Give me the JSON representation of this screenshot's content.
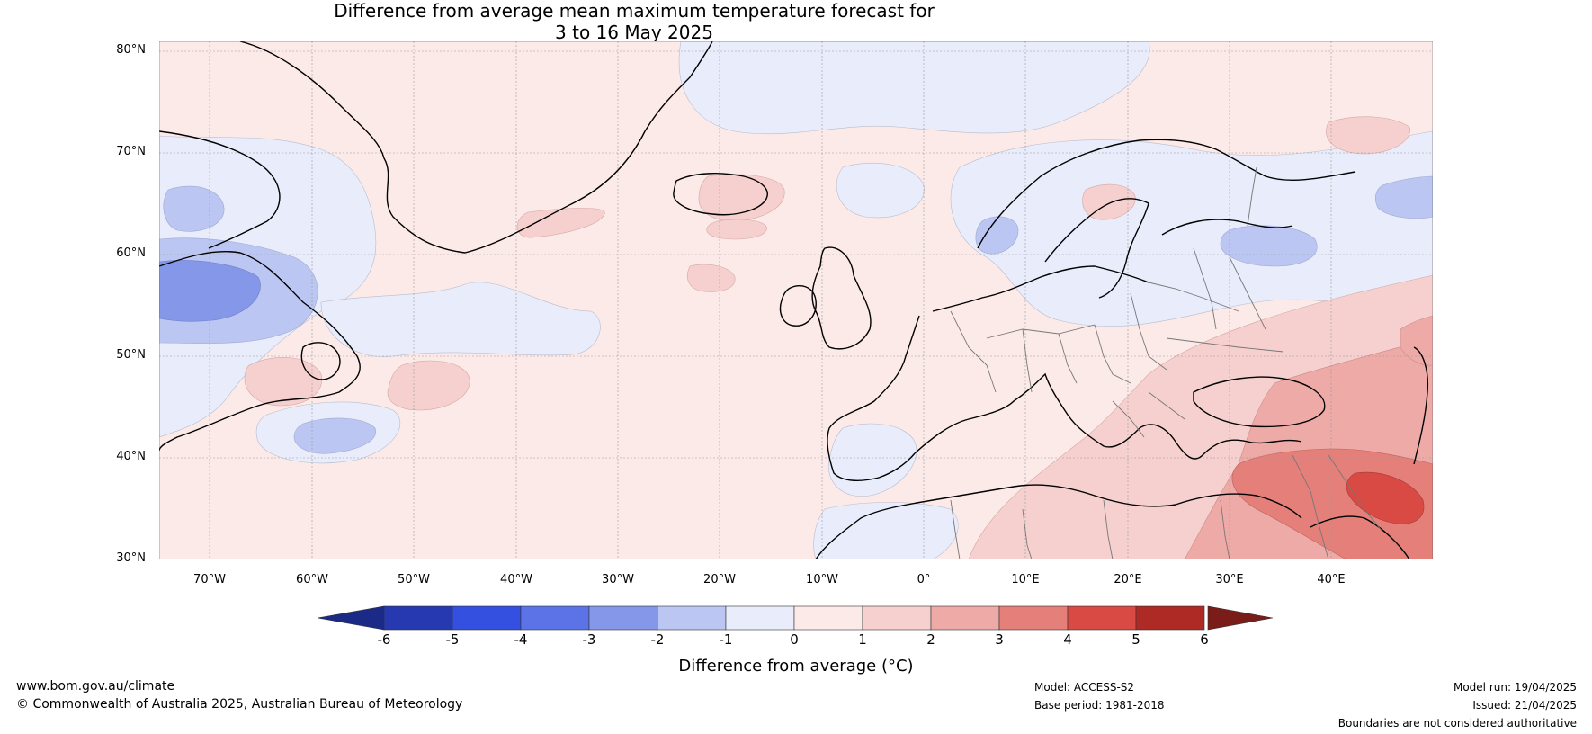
{
  "title": {
    "line1": "Difference from average mean maximum temperature forecast for",
    "line2": "3 to 16 May 2025"
  },
  "map": {
    "lat_labels": [
      "80°N",
      "70°N",
      "60°N",
      "50°N",
      "40°N",
      "30°N"
    ],
    "lon_labels": [
      "70°W",
      "60°W",
      "50°W",
      "40°W",
      "30°W",
      "20°W",
      "10°W",
      "0°",
      "10°E",
      "20°E",
      "30°E",
      "40°E"
    ],
    "background_color": "#fceae8"
  },
  "colorbar": {
    "title": "Difference from average (°C)",
    "tick_labels": [
      "-6",
      "-5",
      "-4",
      "-3",
      "-2",
      "-1",
      "0",
      "1",
      "2",
      "3",
      "4",
      "5",
      "6"
    ],
    "colors": [
      "#2739b0",
      "#3350e0",
      "#5b73e6",
      "#8497e9",
      "#bcc6f3",
      "#e8ecfb",
      "#fceae8",
      "#f5d0cf",
      "#eeaaa7",
      "#e47f79",
      "#d84a43",
      "#ae2a24"
    ],
    "under_color": "#1a2a86",
    "over_color": "#7a1c18"
  },
  "footer": {
    "website": "www.bom.gov.au/climate",
    "copyright": "© Commonwealth of Australia 2025, Australian Bureau of Meteorology",
    "model": "Model: ACCESS-S2",
    "base_period": "Base period: 1981-2018",
    "model_run": "Model run: 19/04/2025",
    "issued": "Issued: 21/04/2025",
    "disclaimer": "Boundaries are not considered authoritative"
  }
}
